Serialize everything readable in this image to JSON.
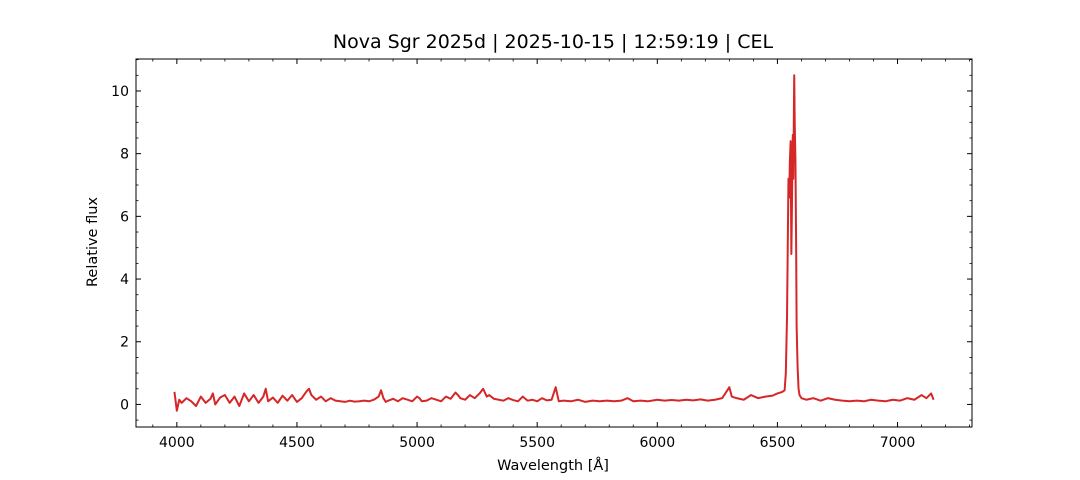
{
  "chart_data": {
    "type": "line",
    "title": "Nova Sgr 2025d | 2025-10-15 | 12:59:19 | CEL",
    "xlabel": "Wavelength [Å]",
    "ylabel": "Relative flux",
    "xlim": [
      3830,
      7310
    ],
    "ylim": [
      -0.72,
      11.02
    ],
    "x_ticks": [
      4000,
      4500,
      5000,
      5500,
      6000,
      6500,
      7000
    ],
    "y_ticks": [
      0,
      2,
      4,
      6,
      8,
      10
    ],
    "x_tick_labels": [
      "4000",
      "4500",
      "5000",
      "5500",
      "6000",
      "6500",
      "7000"
    ],
    "y_tick_labels": [
      "0",
      "2",
      "4",
      "6",
      "8",
      "10"
    ],
    "x_minor_step": 100,
    "y_minor_step": 0.5,
    "grid": false,
    "line_color": "#d62728",
    "series": [
      {
        "x": [
          3990,
          4000,
          4010,
          4020,
          4040,
          4060,
          4080,
          4100,
          4120,
          4140,
          4150,
          4160,
          4180,
          4200,
          4220,
          4240,
          4260,
          4280,
          4300,
          4320,
          4340,
          4360,
          4370,
          4380,
          4400,
          4420,
          4440,
          4460,
          4480,
          4500,
          4520,
          4540,
          4550,
          4560,
          4580,
          4600,
          4620,
          4640,
          4660,
          4680,
          4700,
          4720,
          4740,
          4760,
          4780,
          4800,
          4820,
          4840,
          4850,
          4860,
          4870,
          4880,
          4900,
          4920,
          4940,
          4960,
          4980,
          5000,
          5010,
          5020,
          5040,
          5060,
          5080,
          5100,
          5120,
          5140,
          5160,
          5170,
          5180,
          5200,
          5220,
          5240,
          5260,
          5275,
          5290,
          5300,
          5320,
          5340,
          5360,
          5380,
          5400,
          5420,
          5440,
          5460,
          5480,
          5500,
          5520,
          5540,
          5560,
          5577,
          5590,
          5610,
          5640,
          5670,
          5700,
          5730,
          5760,
          5790,
          5820,
          5850,
          5876,
          5900,
          5930,
          5960,
          6000,
          6030,
          6060,
          6090,
          6120,
          6150,
          6180,
          6210,
          6240,
          6270,
          6300,
          6310,
          6330,
          6360,
          6390,
          6420,
          6450,
          6480,
          6500,
          6520,
          6530,
          6535,
          6540,
          6543,
          6546,
          6549,
          6552,
          6555,
          6558,
          6560,
          6562,
          6564,
          6566,
          6568,
          6570,
          6572,
          6575,
          6578,
          6580,
          6584,
          6588,
          6592,
          6600,
          6620,
          6650,
          6680,
          6710,
          6740,
          6770,
          6800,
          6830,
          6860,
          6890,
          6920,
          6950,
          6980,
          7010,
          7040,
          7070,
          7100,
          7120,
          7140,
          7150
        ],
        "y": [
          0.4,
          -0.2,
          0.15,
          0.05,
          0.2,
          0.1,
          -0.05,
          0.25,
          0.05,
          0.18,
          0.35,
          0.0,
          0.22,
          0.3,
          0.05,
          0.25,
          -0.05,
          0.35,
          0.1,
          0.3,
          0.05,
          0.25,
          0.5,
          0.1,
          0.22,
          0.05,
          0.28,
          0.12,
          0.3,
          0.08,
          0.2,
          0.42,
          0.5,
          0.3,
          0.15,
          0.25,
          0.1,
          0.2,
          0.12,
          0.1,
          0.08,
          0.12,
          0.09,
          0.1,
          0.12,
          0.1,
          0.15,
          0.25,
          0.45,
          0.2,
          0.08,
          0.12,
          0.18,
          0.1,
          0.2,
          0.15,
          0.1,
          0.25,
          0.2,
          0.1,
          0.12,
          0.2,
          0.15,
          0.1,
          0.25,
          0.18,
          0.38,
          0.3,
          0.2,
          0.15,
          0.3,
          0.2,
          0.35,
          0.5,
          0.25,
          0.3,
          0.18,
          0.15,
          0.12,
          0.2,
          0.14,
          0.1,
          0.25,
          0.12,
          0.15,
          0.1,
          0.2,
          0.13,
          0.15,
          0.55,
          0.1,
          0.12,
          0.1,
          0.15,
          0.08,
          0.12,
          0.1,
          0.12,
          0.1,
          0.12,
          0.2,
          0.1,
          0.12,
          0.1,
          0.15,
          0.12,
          0.14,
          0.12,
          0.15,
          0.13,
          0.16,
          0.12,
          0.15,
          0.2,
          0.55,
          0.25,
          0.2,
          0.15,
          0.3,
          0.2,
          0.25,
          0.28,
          0.35,
          0.4,
          0.45,
          1.0,
          2.8,
          5.0,
          7.2,
          6.6,
          7.8,
          8.4,
          4.8,
          6.0,
          7.4,
          8.6,
          7.2,
          8.8,
          10.5,
          9.0,
          7.8,
          5.0,
          2.5,
          1.2,
          0.5,
          0.3,
          0.2,
          0.15,
          0.2,
          0.12,
          0.2,
          0.15,
          0.12,
          0.1,
          0.12,
          0.1,
          0.15,
          0.12,
          0.1,
          0.15,
          0.12,
          0.2,
          0.15,
          0.3,
          0.2,
          0.35,
          0.15
        ]
      }
    ]
  }
}
